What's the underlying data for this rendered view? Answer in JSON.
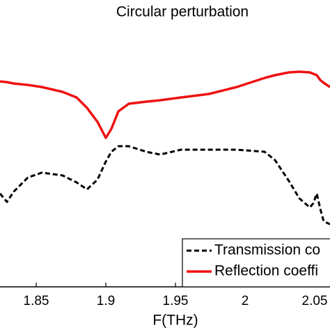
{
  "chart_data": {
    "type": "line",
    "title": "Circular perturbation",
    "xlabel": "F(THz)",
    "x": [
      1.824,
      1.829,
      1.834,
      1.844,
      1.854,
      1.869,
      1.879,
      1.8865,
      1.894,
      1.9,
      1.904,
      1.909,
      1.9165,
      1.929,
      1.939,
      1.954,
      1.974,
      1.994,
      2.014,
      2.0215,
      2.0315,
      2.039,
      2.0465,
      2.049,
      2.0515,
      2.054,
      2.0565,
      2.061
    ],
    "xlim": [
      1.824,
      2.061
    ],
    "xticks": [
      1.85,
      1.9,
      1.95,
      2,
      2.05
    ],
    "ylim": [
      -24,
      350
    ],
    "legend": "lower right",
    "series": [
      {
        "name": "Transmission co",
        "color": "#000000",
        "dash": true,
        "values": [
          110,
          98,
          113,
          133,
          140,
          136,
          126,
          116,
          130,
          156,
          170,
          178,
          178,
          170,
          166,
          173,
          173,
          173,
          170,
          158,
          128,
          103,
          90,
          96,
          110,
          88,
          70,
          66
        ]
      },
      {
        "name": "Reflection coeffi",
        "color": "#ee1111",
        "dash": false,
        "values": [
          271,
          270,
          268,
          266,
          263,
          256,
          248,
          233,
          213,
          190,
          203,
          228,
          239,
          242,
          244,
          248,
          253,
          263,
          276,
          280,
          284,
          285,
          284,
          282,
          280,
          273,
          269,
          263
        ]
      }
    ]
  }
}
